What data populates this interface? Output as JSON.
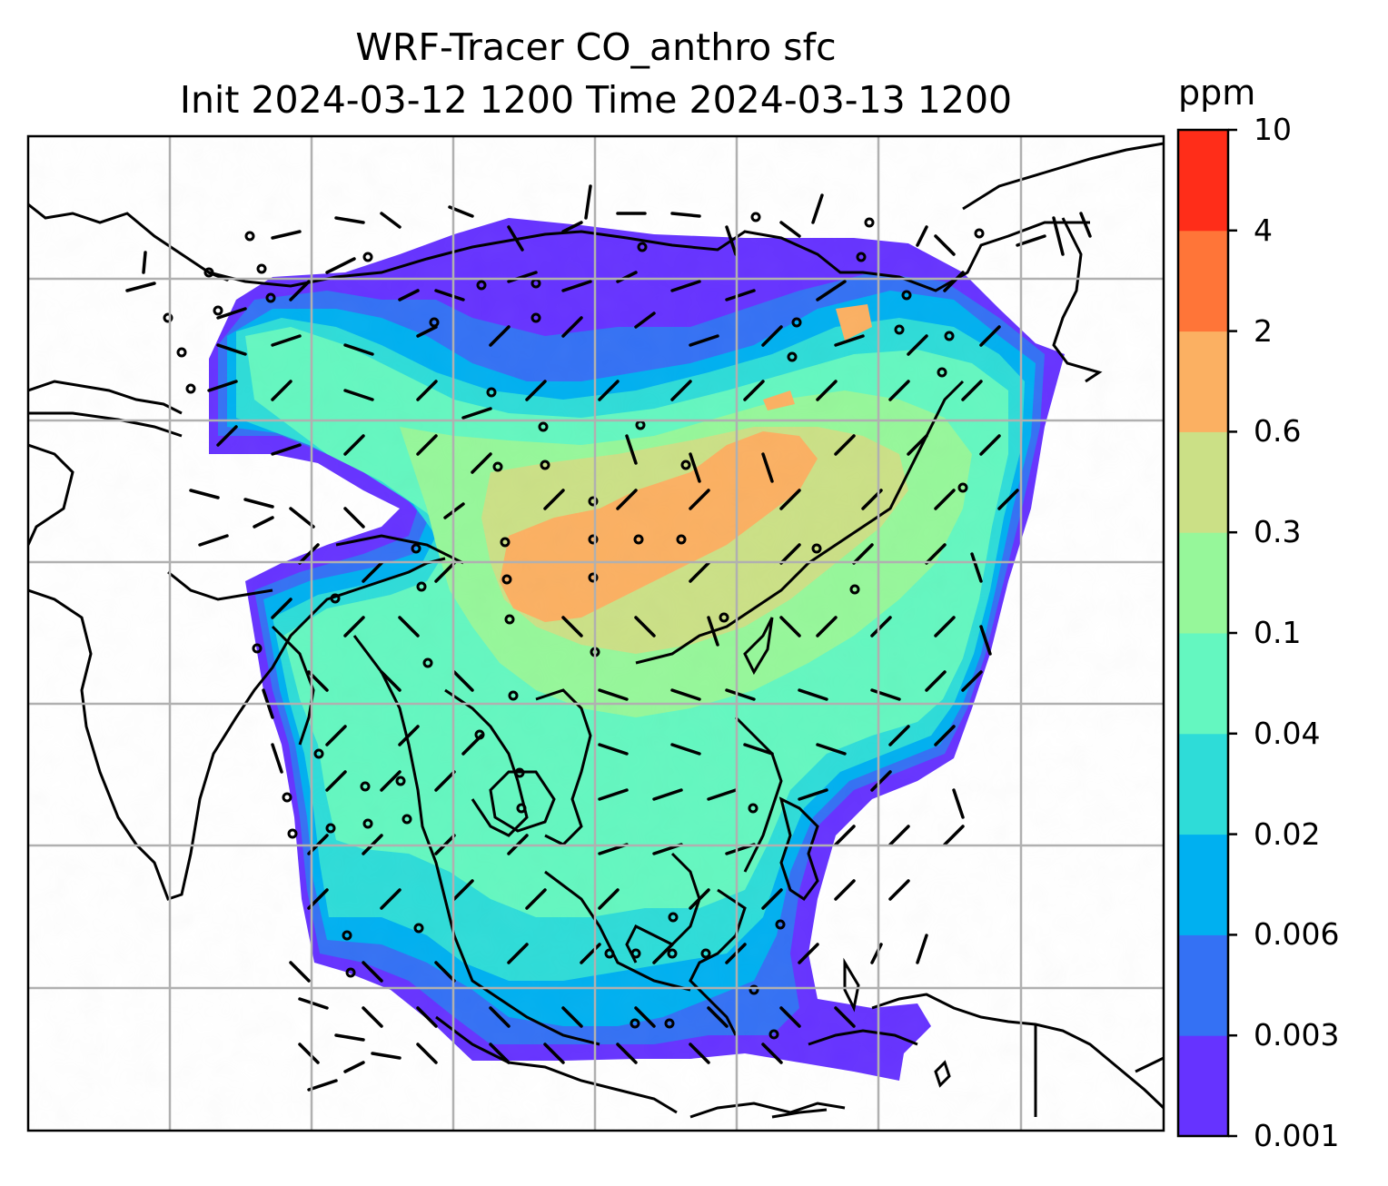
{
  "title": {
    "line1": "WRF-Tracer CO_anthro sfc",
    "line2": "Init 2024-03-12 1200 Time 2024-03-13 1200"
  },
  "colorbar": {
    "unit": "ppm",
    "levels": [
      "0.001",
      "0.003",
      "0.006",
      "0.02",
      "0.04",
      "0.1",
      "0.3",
      "0.6",
      "2",
      "4",
      "10"
    ],
    "colors": [
      "#6633ff",
      "#3471f4",
      "#00b0f0",
      "#2edcd8",
      "#64f7c0",
      "#96f79a",
      "#cbe086",
      "#fbb062",
      "#ff7538",
      "#ff2d19"
    ]
  },
  "map": {
    "projection": "lat-lon map with gridlines",
    "field": "CO_anthro surface concentration (filled contours)",
    "overlay": "wind barbs and calm circles",
    "coastlines": true
  }
}
